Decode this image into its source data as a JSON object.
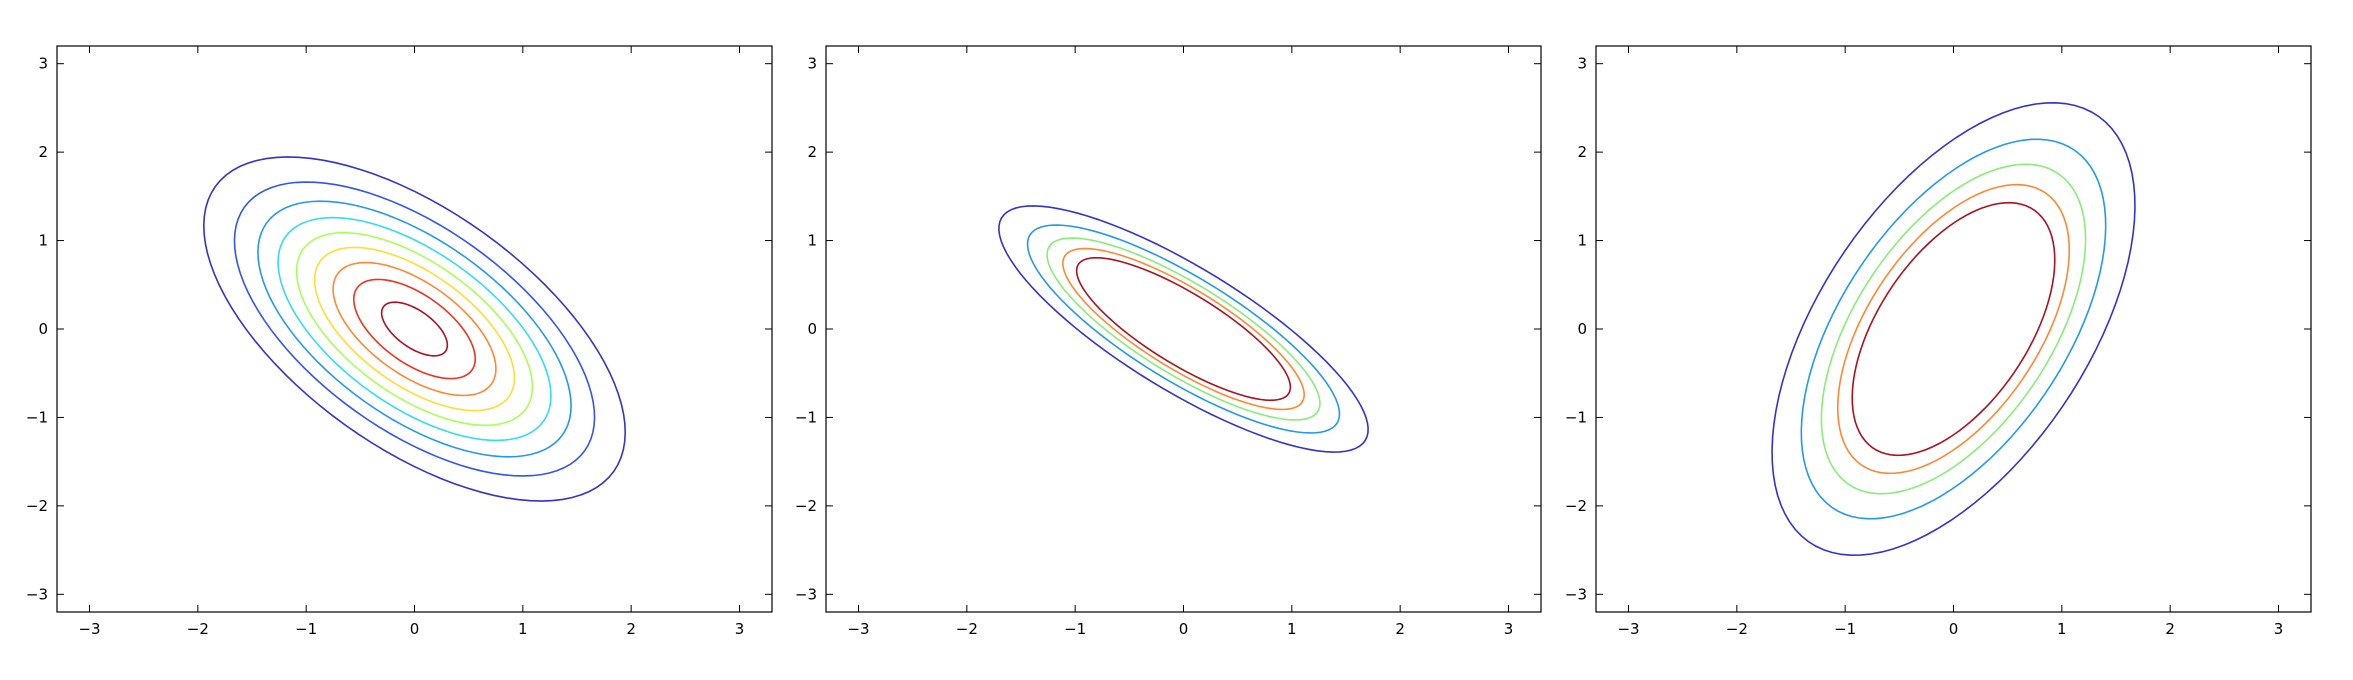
{
  "chart_data": [
    {
      "type": "contour",
      "title": "",
      "xlabel": "",
      "ylabel": "",
      "xlim": [
        -3.3,
        3.3
      ],
      "ylim": [
        -3.2,
        3.2
      ],
      "xticks": [
        -3,
        -2,
        -1,
        0,
        1,
        2,
        3
      ],
      "yticks": [
        -3,
        -2,
        -1,
        0,
        1,
        2,
        3
      ],
      "x_tick_labels": [
        "−3",
        "−2",
        "−1",
        "0",
        "1",
        "2",
        "3"
      ],
      "y_tick_labels": [
        "−3",
        "−2",
        "−1",
        "0",
        "1",
        "2",
        "3"
      ],
      "grid": false,
      "center": [
        0,
        0
      ],
      "covariance": [
        [
          1,
          -0.6
        ],
        [
          -0.6,
          1
        ]
      ],
      "contours": [
        {
          "level": 0.03,
          "color": "#3333cc"
        },
        {
          "level": 0.05,
          "color": "#3355ee"
        },
        {
          "level": 0.07,
          "color": "#2299ee"
        },
        {
          "level": 0.09,
          "color": "#33ddee"
        },
        {
          "level": 0.11,
          "color": "#aaff55"
        },
        {
          "level": 0.13,
          "color": "#ffdd33"
        },
        {
          "level": 0.15,
          "color": "#ff8833"
        },
        {
          "level": 0.17,
          "color": "#ee3322"
        },
        {
          "level": 0.19,
          "color": "#aa1122"
        }
      ]
    },
    {
      "type": "contour",
      "title": "",
      "xlabel": "",
      "ylabel": "",
      "xlim": [
        -3.3,
        3.3
      ],
      "ylim": [
        -3.2,
        3.2
      ],
      "xticks": [
        -3,
        -2,
        -1,
        0,
        1,
        2,
        3
      ],
      "yticks": [
        -3,
        -2,
        -1,
        0,
        1,
        2,
        3
      ],
      "x_tick_labels": [
        "−3",
        "−2",
        "−1",
        "0",
        "1",
        "2",
        "3"
      ],
      "y_tick_labels": [
        "−3",
        "−2",
        "−1",
        "0",
        "1",
        "2",
        "3"
      ],
      "grid": false,
      "center": [
        0,
        0
      ],
      "covariance": [
        [
          0.6,
          -0.4
        ],
        [
          -0.4,
          0.4
        ]
      ],
      "contours": [
        {
          "level": 0.05,
          "color": "#3333cc"
        },
        {
          "level": 0.1,
          "color": "#2299ee"
        },
        {
          "level": 0.15,
          "color": "#88ee77"
        },
        {
          "level": 0.2,
          "color": "#ff8833"
        },
        {
          "level": 0.25,
          "color": "#aa1122"
        }
      ]
    },
    {
      "type": "contour",
      "title": "",
      "xlabel": "",
      "ylabel": "",
      "xlim": [
        -3.3,
        3.3
      ],
      "ylim": [
        -3.2,
        3.2
      ],
      "xticks": [
        -3,
        -2,
        -1,
        0,
        1,
        2,
        3
      ],
      "yticks": [
        -3,
        -2,
        -1,
        0,
        1,
        2,
        3
      ],
      "x_tick_labels": [
        "−3",
        "−2",
        "−1",
        "0",
        "1",
        "2",
        "3"
      ],
      "y_tick_labels": [
        "−3",
        "−2",
        "−1",
        "0",
        "1",
        "2",
        "3"
      ],
      "grid": false,
      "center": [
        0,
        0
      ],
      "covariance": [
        [
          0.6,
          0.5
        ],
        [
          0.5,
          1.4
        ]
      ],
      "contours": [
        {
          "level": 0.02,
          "color": "#3333cc"
        },
        {
          "level": 0.04,
          "color": "#2299ee"
        },
        {
          "level": 0.06,
          "color": "#88ee77"
        },
        {
          "level": 0.08,
          "color": "#ff8833"
        },
        {
          "level": 0.1,
          "color": "#aa1122"
        }
      ]
    }
  ]
}
